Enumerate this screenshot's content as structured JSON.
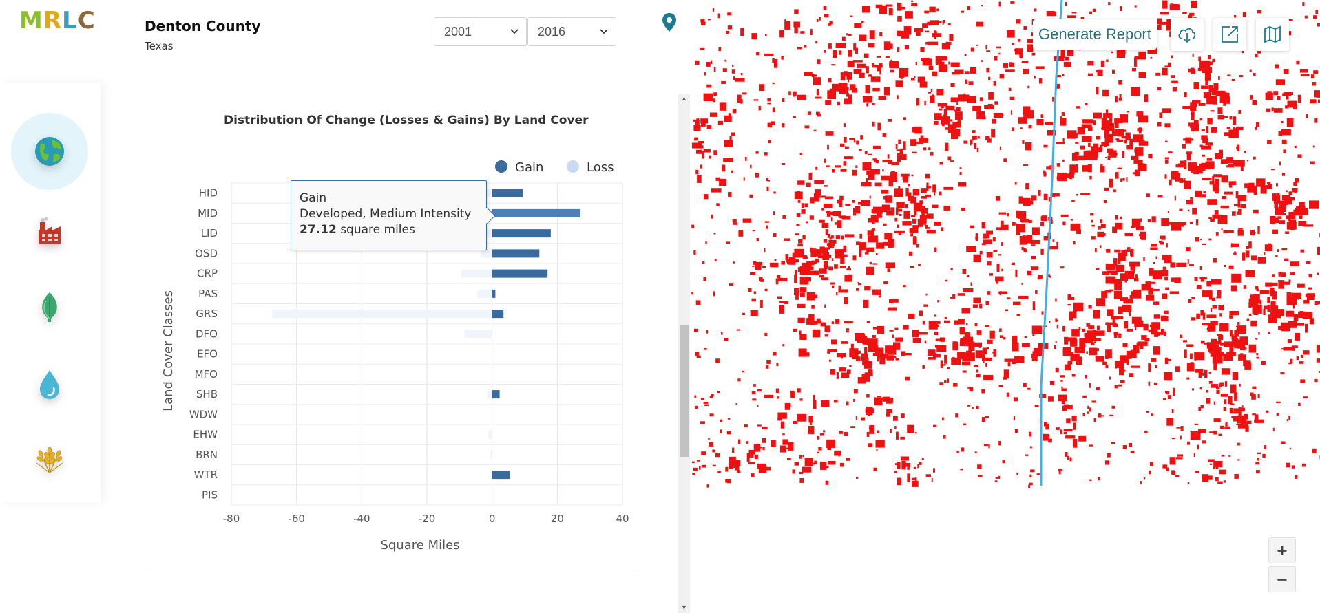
{
  "logo": {
    "text": "MRLC",
    "letters": [
      {
        "char": "M",
        "color": "#8bbf2a"
      },
      {
        "char": "R",
        "color": "#e0a81e"
      },
      {
        "char": "L",
        "color": "#3b9cc4"
      },
      {
        "char": "C",
        "color": "#8a6a3c"
      }
    ]
  },
  "nav": {
    "items": [
      {
        "name": "land-cover",
        "icon": "globe-icon",
        "active": true
      },
      {
        "name": "urban",
        "icon": "factory-icon",
        "active": false
      },
      {
        "name": "forest",
        "icon": "leaf-icon",
        "active": false
      },
      {
        "name": "water",
        "icon": "water-drop-icon",
        "active": false
      },
      {
        "name": "agriculture",
        "icon": "wheat-icon",
        "active": false
      }
    ]
  },
  "header": {
    "county": "Denton County",
    "state": "Texas",
    "start_year": "2001",
    "end_year": "2016"
  },
  "tooltip": {
    "title": "Gain",
    "class_name": "Developed, Medium Intensity",
    "value": "27.12",
    "unit": "square miles"
  },
  "map": {
    "generate_report_label": "Generate Report",
    "zoom_in_label": "+",
    "zoom_out_label": "−",
    "tools": [
      "cloud-download-icon",
      "external-link-icon",
      "map-icon"
    ],
    "change_color": "#ee1111",
    "river_color": "#41b0e4"
  },
  "colors": {
    "accent": "#1e7a8c",
    "gain": "#3b6a9c",
    "loss": "#c9daf2",
    "gain_highlight": "#4f7fb3"
  },
  "chart_data": {
    "type": "bar",
    "orientation": "horizontal",
    "title": "Distribution Of Change (Losses & Gains) By Land Cover",
    "xlabel": "Square Miles",
    "ylabel": "Land Cover Classes",
    "xlim": [
      -80,
      40
    ],
    "xticks": [
      -80,
      -60,
      -40,
      -20,
      0,
      20,
      40
    ],
    "legend_position": "top-right",
    "categories": [
      "HID",
      "MID",
      "LID",
      "OSD",
      "CRP",
      "PAS",
      "GRS",
      "DFO",
      "EFO",
      "MFO",
      "SHB",
      "WDW",
      "EHW",
      "BRN",
      "WTR",
      "PIS"
    ],
    "series": [
      {
        "name": "Gain",
        "values": [
          9.5,
          27.12,
          18.0,
          14.5,
          17.0,
          1.0,
          3.5,
          0,
          0,
          0,
          2.3,
          0,
          0,
          0,
          5.5,
          0
        ]
      },
      {
        "name": "Loss",
        "values": [
          -4.5,
          -2.0,
          -3.0,
          -3.5,
          -9.5,
          -4.5,
          -67.5,
          -8.5,
          0,
          0,
          -1.5,
          0,
          -1.2,
          -0.5,
          -0.5,
          0
        ]
      }
    ],
    "highlighted": {
      "series": "Gain",
      "category": "MID"
    }
  }
}
